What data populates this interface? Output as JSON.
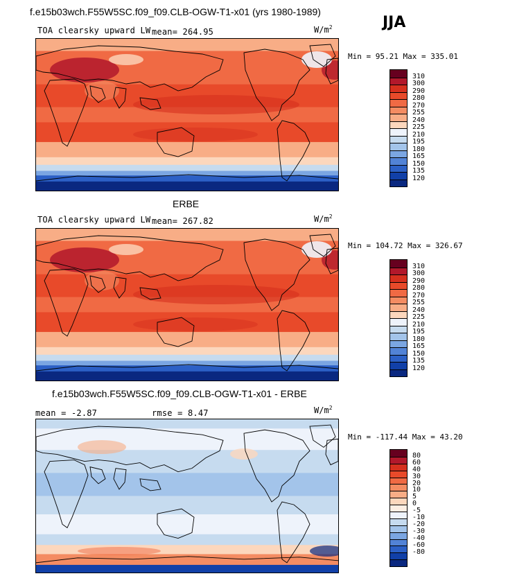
{
  "header": {
    "main_title": "f.e15b03wch.F55W5SC.f09_f09.CLB-OGW-T1-x01 (yrs 1980-1989)",
    "season": "JJA"
  },
  "panels": [
    {
      "id": "model",
      "title": "",
      "variable": "TOA clearsky upward LW",
      "mean_text": "mean= 264.95",
      "rmse_text": "",
      "units": "W/m",
      "units_exp": "2",
      "minmax": "Min =  95.21 Max = 335.01",
      "colorbar": {
        "colors": [
          "#67001f",
          "#b2182b",
          "#d6301e",
          "#e84a2a",
          "#f06a44",
          "#f48c62",
          "#f8ad86",
          "#fcd7bd",
          "#eef3fb",
          "#c6dbef",
          "#a3c4ea",
          "#7ba6e2",
          "#5283d6",
          "#2c60c6",
          "#1140a8",
          "#0a2880"
        ],
        "ticks": [
          "310",
          "300",
          "290",
          "280",
          "270",
          "255",
          "240",
          "225",
          "210",
          "195",
          "180",
          "165",
          "150",
          "135",
          "120"
        ]
      }
    },
    {
      "id": "obs",
      "title": "ERBE",
      "variable": "TOA clearsky upward LW",
      "mean_text": "mean= 267.82",
      "rmse_text": "",
      "units": "W/m",
      "units_exp": "2",
      "minmax": "Min = 104.72 Max = 326.67",
      "colorbar": {
        "colors": [
          "#67001f",
          "#b2182b",
          "#d6301e",
          "#e84a2a",
          "#f06a44",
          "#f48c62",
          "#f8ad86",
          "#fcd7bd",
          "#eef3fb",
          "#c6dbef",
          "#a3c4ea",
          "#7ba6e2",
          "#5283d6",
          "#2c60c6",
          "#1140a8",
          "#0a2880"
        ],
        "ticks": [
          "310",
          "300",
          "290",
          "280",
          "270",
          "255",
          "240",
          "225",
          "210",
          "195",
          "180",
          "165",
          "150",
          "135",
          "120"
        ]
      }
    },
    {
      "id": "diff",
      "title": "f.e15b03wch.F55W5SC.f09_f09.CLB-OGW-T1-x01 - ERBE",
      "variable": "",
      "mean_text": "mean =  -2.87",
      "rmse_text": "rmse =   8.47",
      "units": "W/m",
      "units_exp": "2",
      "minmax": "Min = -117.44 Max =  43.20",
      "colorbar": {
        "colors": [
          "#67001f",
          "#b2182b",
          "#d6301e",
          "#e84a2a",
          "#f06a44",
          "#f48c62",
          "#f8ad86",
          "#fcd7bd",
          "#fdeee3",
          "#eef3fb",
          "#c6dbef",
          "#a3c4ea",
          "#7ba6e2",
          "#5283d6",
          "#2c60c6",
          "#1140a8",
          "#0a2880"
        ],
        "ticks": [
          "80",
          "60",
          "40",
          "30",
          "20",
          "10",
          "5",
          "0",
          "-5",
          "-10",
          "-20",
          "-30",
          "-40",
          "-60",
          "-80"
        ]
      }
    }
  ]
}
